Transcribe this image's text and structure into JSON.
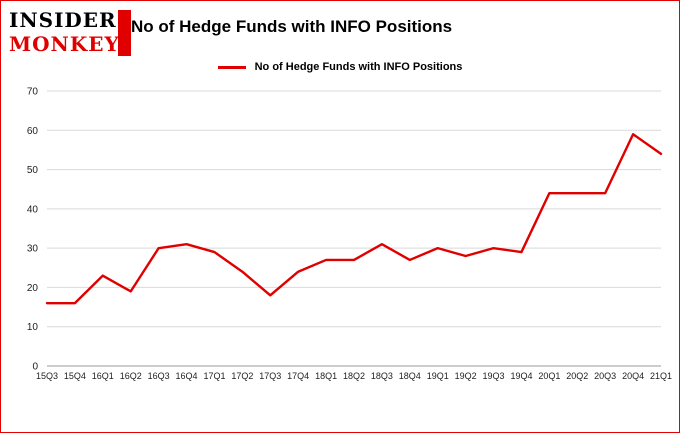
{
  "logo": {
    "line1": "INSIDER",
    "line2": "MONKEY"
  },
  "header": {
    "title": "No of Hedge Funds with INFO Positions"
  },
  "legend": {
    "label": "No of Hedge Funds with INFO Positions"
  },
  "colors": {
    "line": "#e00000",
    "logo_red": "#e00000",
    "border": "#e00000",
    "grid": "#d9d9d9",
    "zero_line": "#999999",
    "axis_text": "#222222"
  },
  "chart_data": {
    "type": "line",
    "title": "No of Hedge Funds with INFO Positions",
    "categories": [
      "15Q3",
      "15Q4",
      "16Q1",
      "16Q2",
      "16Q3",
      "16Q4",
      "17Q1",
      "17Q2",
      "17Q3",
      "17Q4",
      "18Q1",
      "18Q2",
      "18Q3",
      "18Q4",
      "19Q1",
      "19Q2",
      "19Q3",
      "19Q4",
      "20Q1",
      "20Q2",
      "20Q3",
      "20Q4",
      "21Q1"
    ],
    "series": [
      {
        "name": "No of Hedge Funds with INFO Positions",
        "values": [
          16,
          16,
          23,
          19,
          30,
          31,
          29,
          24,
          18,
          24,
          27,
          27,
          31,
          27,
          30,
          28,
          30,
          29,
          44,
          44,
          44,
          59,
          54
        ]
      }
    ],
    "xlabel": "",
    "ylabel": "",
    "ylim": [
      0,
      70
    ],
    "yticks": [
      0,
      10,
      20,
      30,
      40,
      50,
      60,
      70
    ],
    "grid": "horizontal",
    "legend_position": "top"
  }
}
